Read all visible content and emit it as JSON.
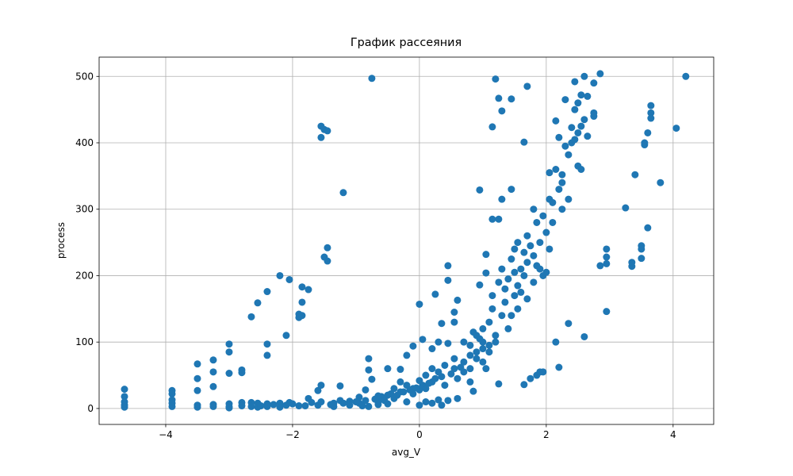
{
  "chart_data": {
    "type": "scatter",
    "title": "График рассеяния",
    "x_label": "avg_V",
    "y_label": "process",
    "color": "#1f77b4",
    "grid": true,
    "xlim": [
      -5.05,
      4.64
    ],
    "ylim": [
      -24,
      529
    ],
    "xticks": [
      {
        "value": -4,
        "label": "−4"
      },
      {
        "value": -2,
        "label": "−2"
      },
      0,
      2,
      4
    ],
    "yticks": [
      0,
      100,
      200,
      300,
      400,
      500
    ],
    "x": [
      -4.65,
      -4.65,
      -4.65,
      -4.65,
      -4.65,
      -3.9,
      -3.9,
      -3.9,
      -3.9,
      -3.9,
      -3.5,
      -3.5,
      -3.5,
      -3.5,
      -3.5,
      -3.25,
      -3.25,
      -3.25,
      -3.25,
      -3.25,
      -3.0,
      -3.0,
      -3.0,
      -3.0,
      -3.0,
      -3.0,
      -2.8,
      -2.8,
      -2.8,
      -2.8,
      -2.65,
      -2.65,
      -2.65,
      -2.55,
      -2.55,
      -2.55,
      -2.4,
      -2.4,
      -2.4,
      -2.4,
      -2.4,
      -2.2,
      -2.2,
      -2.2,
      -2.1,
      -2.1,
      -2.05,
      -2.05,
      -1.9,
      -1.9,
      -1.9,
      -1.85,
      -1.85,
      -1.85,
      -1.75,
      -1.75,
      -1.6,
      -1.6,
      -1.55,
      -1.55,
      -1.55,
      -1.55,
      -1.5,
      -1.5,
      -1.45,
      -1.45,
      -1.45,
      -1.35,
      -1.35,
      -1.25,
      -1.25,
      -1.2,
      -1.1,
      -1.1,
      -0.95,
      -0.95,
      -0.85,
      -0.85,
      -0.8,
      -0.8,
      -0.8,
      -0.75,
      -0.75,
      -0.65,
      -0.65,
      -0.65,
      -0.5,
      -0.5,
      -0.5,
      -0.4,
      -0.4,
      -0.3,
      -0.3,
      -0.3,
      -0.2,
      -0.2,
      -0.2,
      -0.1,
      -0.1,
      -0.1,
      0,
      0,
      0,
      0,
      0.05,
      0.05,
      0.1,
      0.1,
      0.1,
      0.2,
      0.2,
      0.2,
      0.2,
      0.25,
      0.25,
      0.3,
      0.3,
      0.3,
      0.35,
      0.35,
      0.4,
      0.4,
      0.45,
      0.45,
      0.45,
      0.45,
      0.55,
      0.55,
      0.55,
      0.55,
      0.6,
      0.6,
      0.6,
      0.7,
      0.7,
      0.7,
      0.8,
      0.8,
      0.8,
      0.8,
      0.85,
      0.85,
      0.9,
      0.9,
      0.9,
      0.95,
      0.95,
      0.95,
      1.0,
      1.0,
      1.0,
      1.0,
      1.05,
      1.05,
      1.05,
      1.1,
      1.1,
      1.1,
      1.15,
      1.15,
      1.15,
      1.15,
      1.2,
      1.2,
      1.2,
      1.25,
      1.25,
      1.25,
      1.25,
      1.3,
      1.3,
      1.3,
      1.3,
      1.35,
      1.35,
      1.4,
      1.4,
      1.45,
      1.45,
      1.45,
      1.45,
      1.5,
      1.5,
      1.5,
      1.55,
      1.55,
      1.55,
      1.6,
      1.6,
      1.65,
      1.65,
      1.65,
      1.65,
      1.7,
      1.7,
      1.7,
      1.7,
      1.75,
      1.75,
      1.8,
      1.8,
      1.8,
      1.85,
      1.85,
      1.85,
      1.9,
      1.9,
      1.9,
      1.95,
      1.95,
      1.95,
      2.0,
      2.0,
      2.05,
      2.05,
      2.05,
      2.1,
      2.1,
      2.15,
      2.15,
      2.15,
      2.2,
      2.2,
      2.2,
      2.25,
      2.25,
      2.25,
      2.3,
      2.3,
      2.35,
      2.35,
      2.35,
      2.4,
      2.4,
      2.45,
      2.45,
      2.45,
      2.5,
      2.5,
      2.5,
      2.55,
      2.55,
      2.55,
      2.6,
      2.6,
      2.6,
      2.65,
      2.65,
      2.75,
      2.75,
      2.75,
      2.85,
      2.85,
      2.95,
      2.95,
      2.95,
      2.95,
      3.25,
      3.35,
      3.35,
      3.4,
      3.5,
      3.5,
      3.5,
      3.55,
      3.55,
      3.6,
      3.6,
      3.65,
      3.65,
      3.65,
      3.8,
      4.05,
      4.2,
      -2.5,
      -2.3,
      -2.0,
      -1.8,
      -1.7,
      -1.4,
      -1.2,
      -1.0,
      -0.9,
      -0.7,
      -0.6,
      -0.55,
      -0.45,
      -0.35,
      -0.25,
      -0.15,
      -0.05,
      0.15,
      0.35,
      0.5,
      0.65
    ],
    "values": [
      29,
      18,
      10,
      5,
      2,
      27,
      22,
      13,
      8,
      3,
      67,
      45,
      27,
      5,
      2,
      73,
      55,
      33,
      6,
      3,
      97,
      85,
      53,
      7,
      3,
      1,
      58,
      54,
      9,
      4,
      138,
      9,
      3,
      159,
      8,
      2,
      176,
      97,
      80,
      7,
      3,
      200,
      8,
      2,
      110,
      5,
      194,
      9,
      142,
      137,
      4,
      183,
      160,
      140,
      179,
      15,
      27,
      5,
      425,
      408,
      35,
      10,
      420,
      228,
      242,
      222,
      418,
      8,
      3,
      34,
      12,
      325,
      11,
      5,
      8,
      17,
      28,
      12,
      75,
      58,
      3,
      497,
      44,
      10,
      6,
      19,
      60,
      20,
      7,
      30,
      15,
      59,
      25,
      40,
      80,
      35,
      10,
      94,
      30,
      22,
      5,
      157,
      42,
      28,
      104,
      35,
      10,
      50,
      30,
      90,
      60,
      40,
      8,
      172,
      45,
      100,
      55,
      13,
      128,
      5,
      65,
      35,
      193,
      215,
      98,
      12,
      130,
      145,
      60,
      75,
      163,
      15,
      45,
      100,
      70,
      55,
      95,
      60,
      80,
      40,
      115,
      26,
      110,
      85,
      75,
      186,
      329,
      105,
      90,
      70,
      100,
      120,
      232,
      204,
      60,
      130,
      95,
      85,
      424,
      285,
      170,
      150,
      496,
      110,
      100,
      467,
      285,
      190,
      37,
      448,
      315,
      210,
      140,
      180,
      160,
      120,
      195,
      466,
      330,
      225,
      140,
      240,
      205,
      170,
      250,
      185,
      150,
      210,
      175,
      401,
      235,
      200,
      36,
      485,
      260,
      220,
      165,
      245,
      45,
      300,
      230,
      190,
      280,
      215,
      50,
      250,
      210,
      55,
      200,
      290,
      55,
      205,
      265,
      355,
      315,
      240,
      310,
      280,
      433,
      360,
      100,
      408,
      330,
      62,
      340,
      300,
      352,
      465,
      395,
      382,
      315,
      128,
      423,
      400,
      492,
      450,
      405,
      460,
      365,
      415,
      472,
      425,
      360,
      500,
      435,
      108,
      470,
      410,
      490,
      440,
      445,
      215,
      504,
      228,
      218,
      240,
      146,
      302,
      214,
      220,
      352,
      245,
      240,
      226,
      397,
      400,
      272,
      415,
      445,
      456,
      437,
      340,
      422,
      500,
      4,
      6,
      7,
      4,
      9,
      6,
      8,
      10,
      4,
      14,
      18,
      12,
      22,
      20,
      25,
      28,
      31,
      38,
      48,
      52,
      62
    ]
  }
}
